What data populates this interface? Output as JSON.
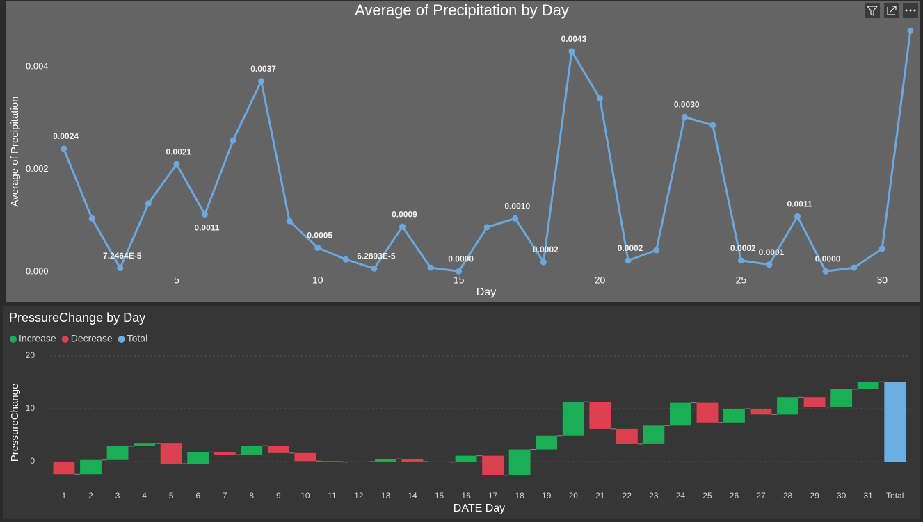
{
  "chart_data": [
    {
      "type": "line",
      "title": "Average of Precipitation by Day",
      "x_label": "Day",
      "y_label": "Average of Precipitation",
      "x": [
        1,
        2,
        3,
        4,
        5,
        6,
        7,
        8,
        9,
        10,
        11,
        12,
        13,
        14,
        15,
        16,
        17,
        18,
        19,
        20,
        21,
        22,
        23,
        24,
        25,
        26,
        27,
        28,
        29,
        30,
        31
      ],
      "series": [
        {
          "name": "Average of Precipitation",
          "color": "#6aa8de",
          "values": [
            0.0024,
            0.00104,
            7.2464e-05,
            0.00133,
            0.0021,
            0.00112,
            0.00256,
            0.00372,
            0.00099,
            0.00047,
            0.00024,
            6.2893e-05,
            0.00088,
            8e-05,
            1e-05,
            0.00087,
            0.00104,
            0.00019,
            0.0043,
            0.00338,
            0.00022,
            0.00042,
            0.00302,
            0.00286,
            0.00022,
            0.00014,
            0.00108,
            1e-05,
            8e-05,
            0.00045,
            0.0047
          ],
          "value_labels": [
            "0.0024",
            null,
            "7.2464E-5",
            null,
            "0.0021",
            "0.0011",
            null,
            "0.0037",
            null,
            "0.0005",
            null,
            "6.2893E-5",
            "0.0009",
            null,
            "0.0000",
            null,
            "0.0010",
            "0.0002",
            "0.0043",
            null,
            "0.0002",
            null,
            "0.0030",
            null,
            "0.0002",
            "0.0001",
            "0.0011",
            "0.0000",
            null,
            null,
            null
          ]
        }
      ],
      "xlim": [
        0.5,
        31.3
      ],
      "xticks": [
        5,
        10,
        15,
        20,
        25,
        30
      ],
      "ylim": [
        0,
        0.0049
      ],
      "yticks": [
        {
          "value": 0,
          "label": "0.000"
        },
        {
          "value": 0.002,
          "label": "0.002"
        },
        {
          "value": 0.004,
          "label": "0.004"
        }
      ],
      "grid": false
    },
    {
      "type": "waterfall",
      "title": "PressureChange by Day",
      "x_label": "DATE Day",
      "y_label": "PressureChange",
      "legend": [
        {
          "name": "Increase",
          "color": "#1aaf54"
        },
        {
          "name": "Decrease",
          "color": "#dd4150"
        },
        {
          "name": "Total",
          "color": "#6aaee2"
        }
      ],
      "categories": [
        "1",
        "2",
        "3",
        "4",
        "5",
        "6",
        "7",
        "8",
        "9",
        "10",
        "11",
        "12",
        "13",
        "14",
        "15",
        "16",
        "17",
        "18",
        "19",
        "20",
        "21",
        "22",
        "23",
        "24",
        "25",
        "26",
        "27",
        "28",
        "29",
        "30",
        "31"
      ],
      "values": [
        -2.4,
        2.7,
        2.6,
        0.5,
        -3.8,
        2.2,
        -0.5,
        1.7,
        -1.4,
        -1.5,
        -0.2,
        0.1,
        0.5,
        -0.5,
        -0.1,
        1.2,
        -3.7,
        4.9,
        2.6,
        6.4,
        -5.1,
        -2.9,
        3.5,
        4.3,
        -3.7,
        2.6,
        -1.1,
        3.3,
        -1.9,
        3.4,
        1.4
      ],
      "total_label": "Total",
      "total": 15.1,
      "ylim": [
        -3.5,
        21
      ],
      "yticks": [
        0,
        10,
        20
      ],
      "grid": true
    }
  ]
}
